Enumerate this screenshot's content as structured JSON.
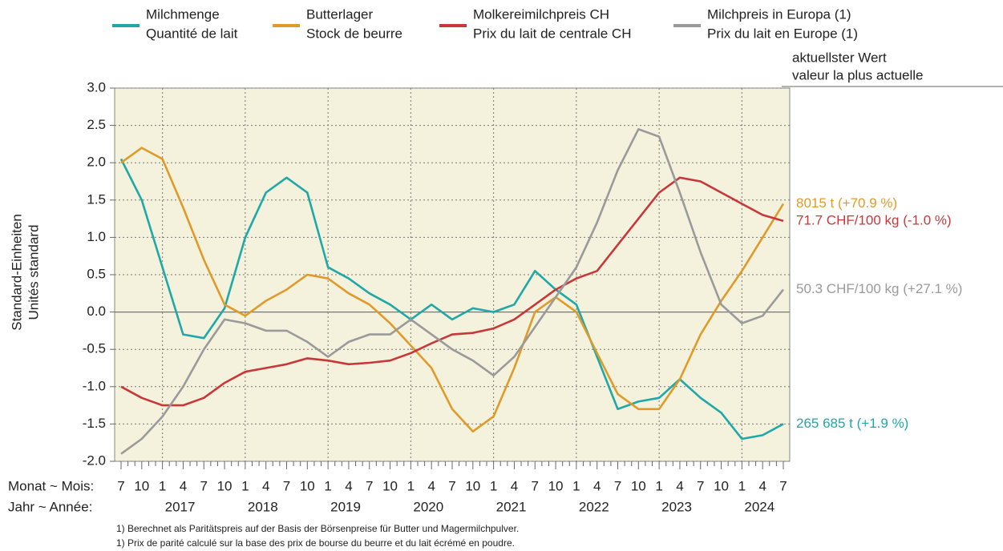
{
  "chart_data": {
    "type": "line",
    "ylabel": [
      "Standard-Einheiten",
      "Unités standard"
    ],
    "xlabel_month": "Monat ~ Mois:",
    "xlabel_year": "Jahr ~ Année:",
    "latest_header": [
      "aktuellster Wert",
      "valeur la plus actuelle"
    ],
    "categories": [
      "7",
      "10",
      "1",
      "4",
      "7",
      "10",
      "1",
      "4",
      "7",
      "10",
      "1",
      "4",
      "7",
      "10",
      "1",
      "4",
      "7",
      "10",
      "1",
      "4",
      "7",
      "10",
      "1",
      "4",
      "7",
      "10",
      "1",
      "4",
      "7",
      "10",
      "1",
      "4",
      "7"
    ],
    "years": [
      "2017",
      "2018",
      "2019",
      "2020",
      "2021",
      "2022",
      "2023",
      "2024"
    ],
    "ylim": [
      -2,
      3
    ],
    "yticks": [
      {
        "value": -2,
        "label": "-2.0"
      },
      {
        "value": -1.5,
        "label": "-1.5"
      },
      {
        "value": -1,
        "label": "-1.0"
      },
      {
        "value": -0.5,
        "label": "-0.5"
      },
      {
        "value": 0,
        "label": "0.0"
      },
      {
        "value": 0.5,
        "label": "0.5"
      },
      {
        "value": 1,
        "label": "1.0"
      },
      {
        "value": 1.5,
        "label": "1.5"
      },
      {
        "value": 2,
        "label": "2.0"
      },
      {
        "value": 2.5,
        "label": "2.5"
      },
      {
        "value": 3,
        "label": "3.0"
      }
    ],
    "grid": true,
    "series": [
      {
        "name": [
          "Milchmenge",
          "Quantité de lait"
        ],
        "color": "#1fa8a8",
        "latest": "265 685 t (+1.9 %)",
        "values": [
          2.05,
          1.5,
          0.6,
          -0.3,
          -0.35,
          0.05,
          1.0,
          1.6,
          1.8,
          1.6,
          0.6,
          0.45,
          0.25,
          0.1,
          -0.1,
          0.1,
          -0.1,
          0.05,
          0.0,
          0.1,
          0.55,
          0.3,
          0.1,
          -0.6,
          -1.3,
          -1.2,
          -1.15,
          -0.9,
          -1.15,
          -1.35,
          -1.7,
          -1.65,
          -1.5
        ]
      },
      {
        "name": [
          "Butterlager",
          "Stock de beurre"
        ],
        "color": "#e09a2a",
        "latest": "8015 t (+70.9 %)",
        "values": [
          2.0,
          2.2,
          2.05,
          1.4,
          0.7,
          0.1,
          -0.05,
          0.15,
          0.3,
          0.5,
          0.45,
          0.25,
          0.1,
          -0.15,
          -0.45,
          -0.75,
          -1.3,
          -1.6,
          -1.4,
          -0.75,
          0.0,
          0.2,
          0.0,
          -0.55,
          -1.1,
          -1.3,
          -1.3,
          -0.9,
          -0.3,
          0.15,
          0.55,
          1.0,
          1.45
        ]
      },
      {
        "name": [
          "Molkereimilchpreis CH",
          "Prix du lait de centrale CH"
        ],
        "color": "#c8383a",
        "latest": "71.7 CHF/100 kg (-1.0 %)",
        "values": [
          -1.0,
          -1.15,
          -1.25,
          -1.25,
          -1.15,
          -0.95,
          -0.8,
          -0.75,
          -0.7,
          -0.62,
          -0.65,
          -0.7,
          -0.68,
          -0.65,
          -0.55,
          -0.42,
          -0.3,
          -0.28,
          -0.22,
          -0.1,
          0.1,
          0.3,
          0.45,
          0.55,
          0.9,
          1.25,
          1.6,
          1.8,
          1.75,
          1.6,
          1.45,
          1.3,
          1.22
        ]
      },
      {
        "name": [
          "Milchpreis in Europa (1)",
          "Prix du lait en Europe (1)"
        ],
        "color": "#9a9a9a",
        "latest": "50.3 CHF/100 kg (+27.1 %)",
        "values": [
          -1.9,
          -1.7,
          -1.4,
          -1.0,
          -0.5,
          -0.1,
          -0.15,
          -0.25,
          -0.25,
          -0.4,
          -0.6,
          -0.4,
          -0.3,
          -0.3,
          -0.1,
          -0.3,
          -0.5,
          -0.65,
          -0.85,
          -0.6,
          -0.2,
          0.2,
          0.6,
          1.2,
          1.9,
          2.45,
          2.35,
          1.6,
          0.8,
          0.1,
          -0.15,
          -0.05,
          0.3
        ]
      }
    ],
    "footnotes": [
      "1) Berechnet als Paritätspreis auf der Basis der Börsenpreise für Butter und Magermilchpulver.",
      "1) Prix de parité calculé sur la base des prix de bourse du beurre et du lait écrémé en poudre."
    ]
  }
}
